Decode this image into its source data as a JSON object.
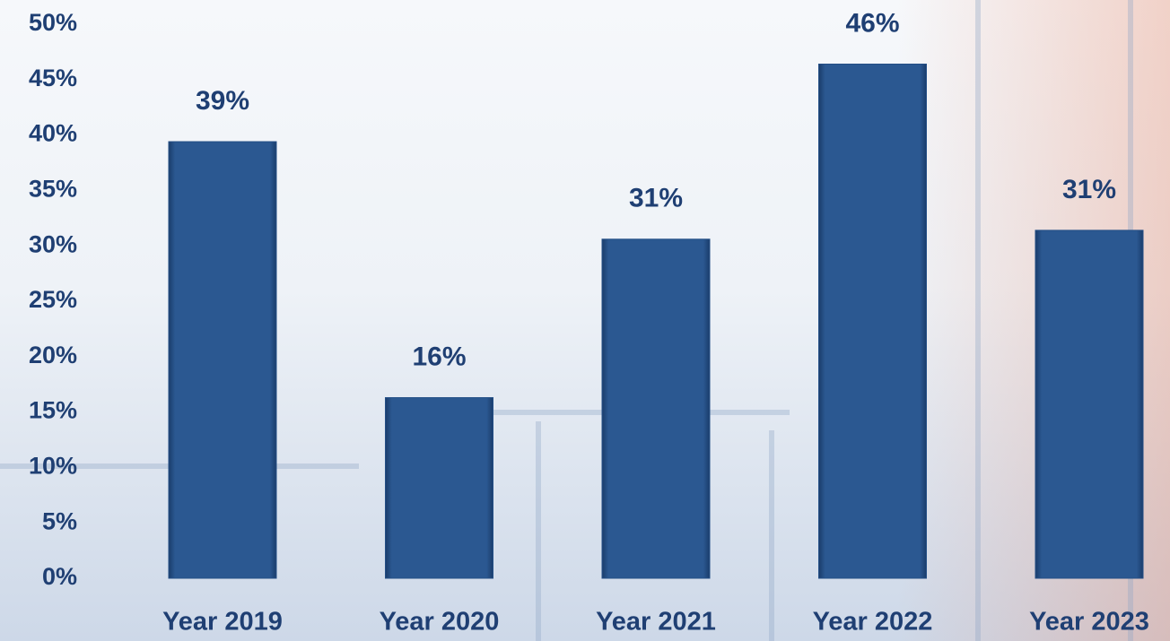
{
  "chart_data": {
    "type": "bar",
    "categories": [
      "Year 2019",
      "Year 2020",
      "Year 2021",
      "Year 2022",
      "Year 2023"
    ],
    "values": [
      39.4,
      16.3,
      30.6,
      46.4,
      31.4
    ],
    "value_labels": [
      "39%",
      "16%",
      "31%",
      "46%",
      "31%"
    ],
    "color": "#244f86",
    "ylim": [
      0,
      50
    ],
    "yticks": [
      {
        "value": 0,
        "label": "0%"
      },
      {
        "value": 5,
        "label": "5%"
      },
      {
        "value": 10,
        "label": "10%"
      },
      {
        "value": 15,
        "label": "15%"
      },
      {
        "value": 20,
        "label": "20%"
      },
      {
        "value": 25,
        "label": "25%"
      },
      {
        "value": 30,
        "label": "30%"
      },
      {
        "value": 35,
        "label": "35%"
      },
      {
        "value": 40,
        "label": "40%"
      },
      {
        "value": 45,
        "label": "45%"
      },
      {
        "value": 50,
        "label": "50%"
      }
    ],
    "grid": false
  }
}
